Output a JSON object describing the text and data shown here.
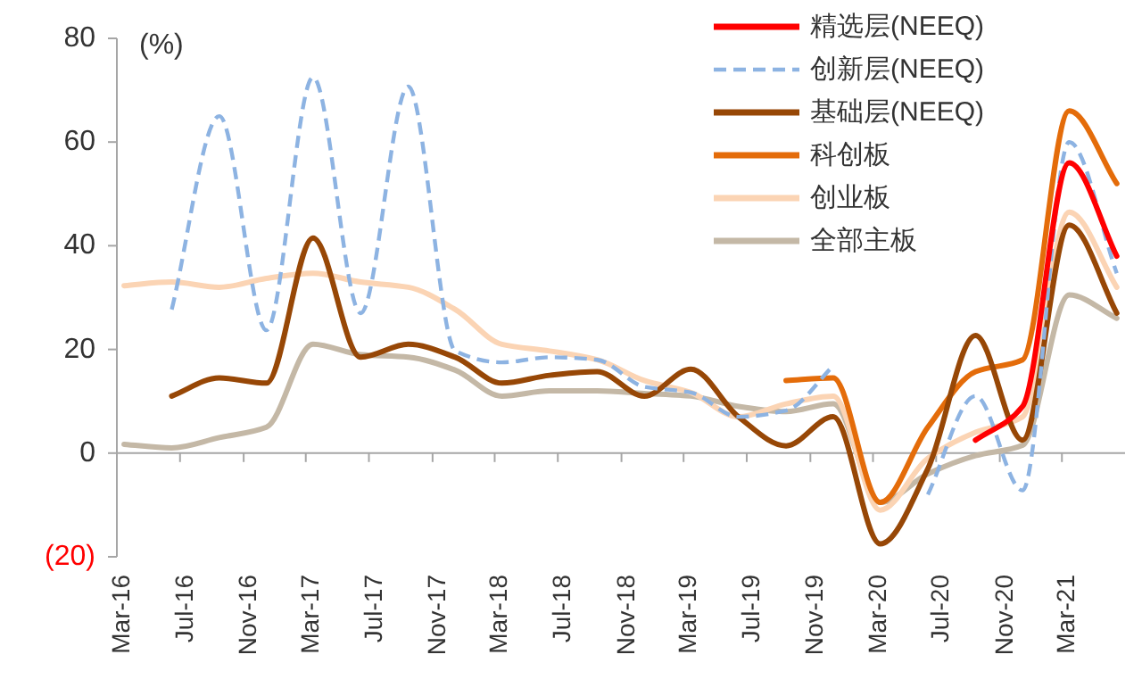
{
  "chart_data": {
    "type": "line",
    "ylabel": "(%)",
    "x": [
      "2016-03-15",
      "2016-06-15",
      "2016-09-15",
      "2016-12-15",
      "2017-03-15",
      "2017-06-15",
      "2017-09-15",
      "2017-12-15",
      "2018-03-15",
      "2018-06-15",
      "2018-09-15",
      "2018-12-15",
      "2019-03-15",
      "2019-06-15",
      "2019-09-15",
      "2019-12-15",
      "2020-03-15",
      "2020-06-15",
      "2020-09-15",
      "2020-12-15",
      "2021-03-15",
      "2021-06-15"
    ],
    "xlim": [
      "2016-03-01",
      "2021-07-01"
    ],
    "xticks": [
      {
        "value": "2016-03-01",
        "label": "Mar-16"
      },
      {
        "value": "2016-07-01",
        "label": "Jul-16"
      },
      {
        "value": "2016-11-01",
        "label": "Nov-16"
      },
      {
        "value": "2017-03-01",
        "label": "Mar-17"
      },
      {
        "value": "2017-07-01",
        "label": "Jul-17"
      },
      {
        "value": "2017-11-01",
        "label": "Nov-17"
      },
      {
        "value": "2018-03-01",
        "label": "Mar-18"
      },
      {
        "value": "2018-07-01",
        "label": "Jul-18"
      },
      {
        "value": "2018-11-01",
        "label": "Nov-18"
      },
      {
        "value": "2019-03-01",
        "label": "Mar-19"
      },
      {
        "value": "2019-07-01",
        "label": "Jul-19"
      },
      {
        "value": "2019-11-01",
        "label": "Nov-19"
      },
      {
        "value": "2020-03-01",
        "label": "Mar-20"
      },
      {
        "value": "2020-07-01",
        "label": "Jul-20"
      },
      {
        "value": "2020-11-01",
        "label": "Nov-20"
      },
      {
        "value": "2021-03-01",
        "label": "Mar-21"
      }
    ],
    "ylim": [
      -20,
      80
    ],
    "yticks": [
      {
        "value": -20,
        "label": "(20)"
      },
      0,
      20,
      40,
      60,
      80
    ],
    "legend": "top right",
    "series": [
      {
        "name": "精选层(NEEQ)",
        "color": "#ff0000",
        "values": [
          null,
          null,
          null,
          null,
          null,
          null,
          null,
          null,
          null,
          null,
          null,
          null,
          null,
          null,
          null,
          null,
          null,
          null,
          2.5,
          9,
          56,
          38
        ]
      },
      {
        "name": "创新层(NEEQ)",
        "color": "#8db3e2",
        "line_style": "dashed",
        "values": [
          null,
          27.7,
          65,
          23.7,
          72.5,
          27,
          70.7,
          19.7,
          17.5,
          18.5,
          18,
          12.8,
          11.7,
          7,
          8.2,
          16.8,
          null,
          -8,
          11,
          -7.2,
          60,
          34.7
        ]
      },
      {
        "name": "基础层(NEEQ)",
        "color": "#974706",
        "values": [
          null,
          11,
          14.5,
          13.5,
          41.5,
          18.5,
          21,
          18.5,
          13.5,
          15,
          15.7,
          11,
          16.2,
          7,
          1.4,
          7,
          -17.5,
          -3,
          22.7,
          2.5,
          44,
          27
        ]
      },
      {
        "name": "科创板",
        "color": "#e46c0a",
        "values": [
          null,
          null,
          null,
          null,
          null,
          null,
          null,
          null,
          null,
          null,
          null,
          null,
          null,
          null,
          14,
          14.5,
          -9.5,
          5,
          15.7,
          18,
          66,
          52
        ]
      },
      {
        "name": "创业板",
        "color": "#fbd4b4",
        "values": [
          32.3,
          33,
          32,
          33.7,
          34.7,
          33,
          32,
          27.7,
          21,
          19.7,
          18,
          14,
          11.7,
          7,
          9.5,
          11,
          -11,
          -1,
          4,
          7,
          46.5,
          32
        ]
      },
      {
        "name": "全部主板",
        "color": "#c4b8a6",
        "values": [
          1.7,
          1,
          3,
          5,
          21,
          19,
          18.5,
          16,
          11,
          12,
          12,
          11.5,
          11,
          9,
          8,
          9.5,
          -9.5,
          -4,
          -0.5,
          1.5,
          30.5,
          26
        ]
      }
    ]
  }
}
